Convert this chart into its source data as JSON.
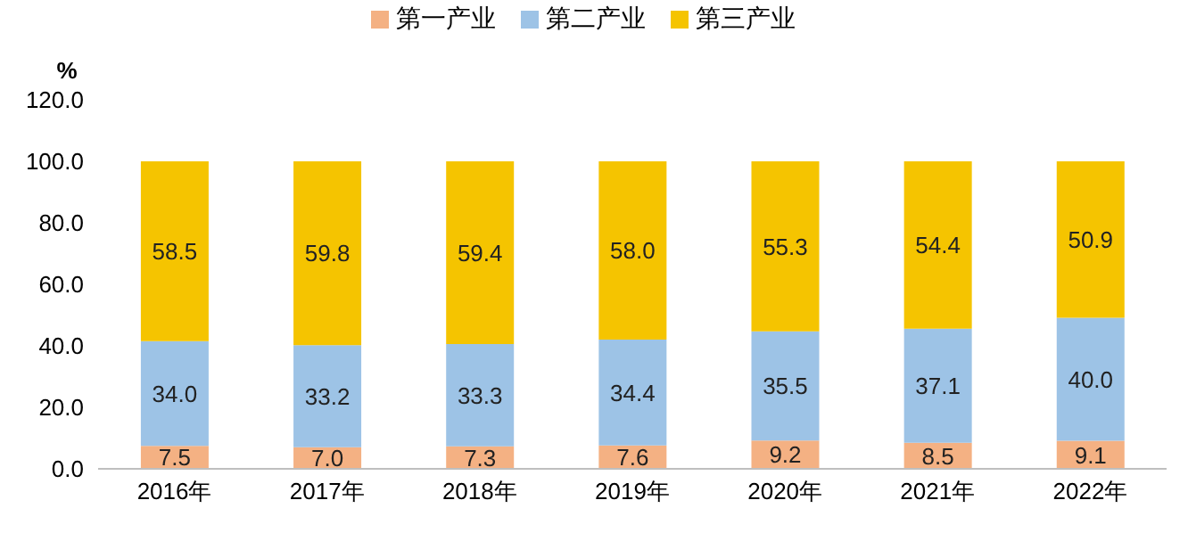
{
  "chart_data": {
    "type": "bar",
    "stacked": true,
    "ylabel": "%",
    "categories": [
      "2016年",
      "2017年",
      "2018年",
      "2019年",
      "2020年",
      "2021年",
      "2022年"
    ],
    "series": [
      {
        "name": "第一产业",
        "color": "#f4b183",
        "values": [
          7.5,
          7.0,
          7.3,
          7.6,
          9.2,
          8.5,
          9.1
        ],
        "value_labels": [
          "7.5",
          "7.0",
          "7.3",
          "7.6",
          "9.2",
          "8.5",
          "9.1"
        ]
      },
      {
        "name": "第二产业",
        "color": "#9dc3e6",
        "values": [
          34.0,
          33.2,
          33.3,
          34.4,
          35.5,
          37.1,
          40.0
        ],
        "value_labels": [
          "34.0",
          "33.2",
          "33.3",
          "34.4",
          "35.5",
          "37.1",
          "40.0"
        ]
      },
      {
        "name": "第三产业",
        "color": "#f5c400",
        "values": [
          58.5,
          59.8,
          59.4,
          58.0,
          55.3,
          54.4,
          50.9
        ],
        "value_labels": [
          "58.5",
          "59.8",
          "59.4",
          "58.0",
          "55.3",
          "54.4",
          "50.9"
        ]
      }
    ],
    "ylim": [
      0,
      120
    ],
    "yticks": [
      {
        "value": 0,
        "label": "0.0"
      },
      {
        "value": 20,
        "label": "20.0"
      },
      {
        "value": 40,
        "label": "40.0"
      },
      {
        "value": 60,
        "label": "60.0"
      },
      {
        "value": 80,
        "label": "80.0"
      },
      {
        "value": 100,
        "label": "100.0"
      },
      {
        "value": 120,
        "label": "120.0"
      }
    ],
    "legend": "top",
    "grid": false
  }
}
